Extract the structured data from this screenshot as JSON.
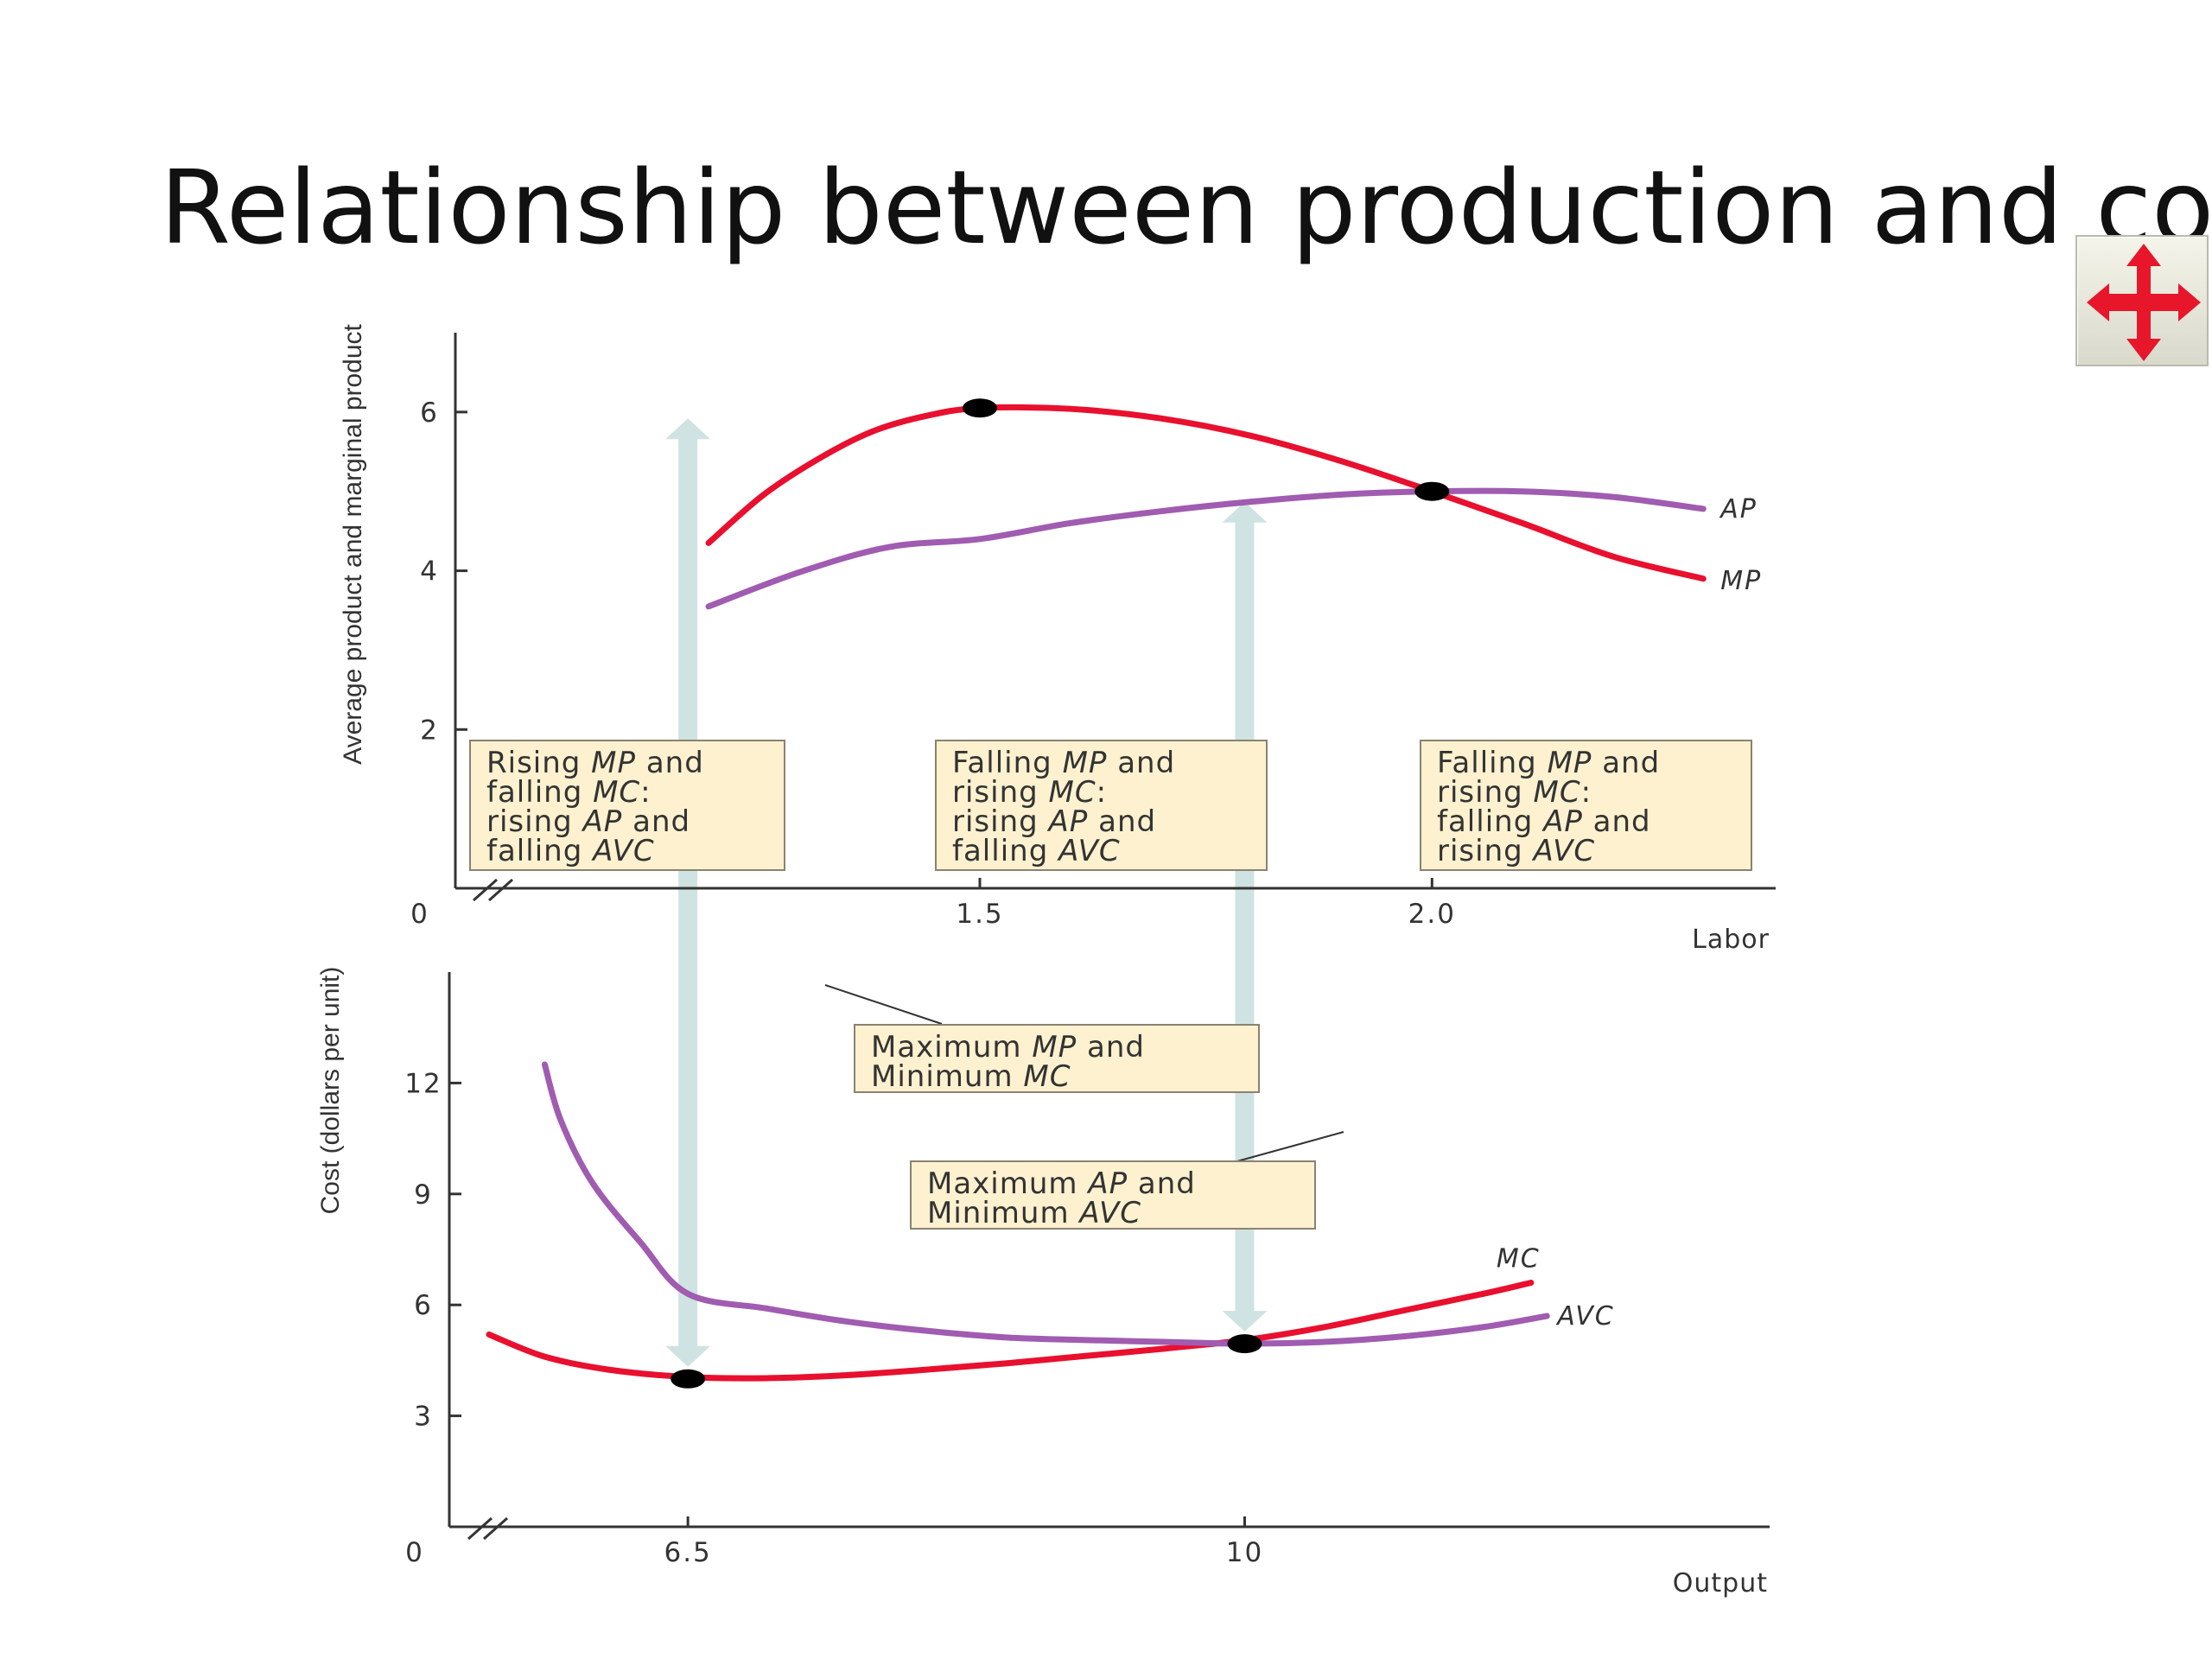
{
  "slide": {
    "title": "Relationship between production and cost"
  },
  "toolbar": {
    "move_icon": "four-way-arrow-icon",
    "move_icon_color": "#e8162b"
  },
  "annotations": {
    "rising_mp": [
      "Rising |MP| and",
      "falling |MC|:",
      "rising |AP| and",
      "falling |AVC|"
    ],
    "falling_mp_rising_ap": [
      "Falling |MP| and",
      "rising |MC|:",
      "rising |AP| and",
      "falling |AVC|"
    ],
    "falling_mp_falling_ap": [
      "Falling |MP| and",
      "rising |MC|:",
      "falling |AP| and",
      "rising |AVC|"
    ],
    "max_mp": [
      "Maximum |MP| and",
      "Minimum |MC|"
    ],
    "max_ap": [
      "Maximum |AP| and",
      "Minimum |AVC|"
    ]
  },
  "chart_data": [
    {
      "type": "line",
      "ylabel": "Average product and marginal product",
      "xlabel": "Labor",
      "xlim": [
        0.92,
        2.38
      ],
      "ylim": [
        0,
        7
      ],
      "x_ticks": [
        {
          "value": 1.5,
          "label": "1.5"
        },
        {
          "value": 2.0,
          "label": "2.0"
        }
      ],
      "y_ticks": [
        {
          "value": 2,
          "label": "2"
        },
        {
          "value": 4,
          "label": "4"
        },
        {
          "value": 6,
          "label": "6"
        }
      ],
      "origin_label": "0",
      "axis_break": true,
      "series": [
        {
          "name": "MP",
          "color": "#e8102e",
          "points": [
            [
              1.2,
              4.35
            ],
            [
              1.26,
              4.95
            ],
            [
              1.32,
              5.4
            ],
            [
              1.38,
              5.75
            ],
            [
              1.44,
              5.95
            ],
            [
              1.5,
              6.05
            ],
            [
              1.6,
              6.04
            ],
            [
              1.7,
              5.92
            ],
            [
              1.8,
              5.7
            ],
            [
              1.9,
              5.38
            ],
            [
              2.0,
              5.0
            ],
            [
              2.1,
              4.6
            ],
            [
              2.2,
              4.18
            ],
            [
              2.3,
              3.9
            ]
          ]
        },
        {
          "name": "AP",
          "color": "#a05cb0",
          "points": [
            [
              1.2,
              3.55
            ],
            [
              1.3,
              3.98
            ],
            [
              1.4,
              4.3
            ],
            [
              1.5,
              4.4
            ],
            [
              1.6,
              4.6
            ],
            [
              1.7,
              4.75
            ],
            [
              1.8,
              4.87
            ],
            [
              1.9,
              4.96
            ],
            [
              2.0,
              5.0
            ],
            [
              2.1,
              5.0
            ],
            [
              2.2,
              4.93
            ],
            [
              2.3,
              4.78
            ]
          ]
        }
      ],
      "highlight_points": [
        [
          1.5,
          6.05
        ],
        [
          2.0,
          5.0
        ]
      ]
    },
    {
      "type": "line",
      "ylabel": "Cost (dollars per unit)",
      "xlabel": "Output",
      "xlim": [
        5.0,
        13.3
      ],
      "ylim": [
        0,
        15
      ],
      "x_ticks": [
        {
          "value": 6.5,
          "label": "6.5"
        },
        {
          "value": 10,
          "label": "10"
        }
      ],
      "y_ticks": [
        {
          "value": 3,
          "label": "3"
        },
        {
          "value": 6,
          "label": "6"
        },
        {
          "value": 9,
          "label": "9"
        },
        {
          "value": 12,
          "label": "12"
        }
      ],
      "origin_label": "0",
      "axis_break": true,
      "series": [
        {
          "name": "MC",
          "color": "#e8102e",
          "points": [
            [
              5.25,
              5.2
            ],
            [
              5.6,
              4.6
            ],
            [
              6.0,
              4.25
            ],
            [
              6.5,
              4.05
            ],
            [
              7.0,
              4.02
            ],
            [
              7.5,
              4.1
            ],
            [
              8.0,
              4.25
            ],
            [
              8.5,
              4.42
            ],
            [
              9.0,
              4.62
            ],
            [
              9.5,
              4.82
            ],
            [
              10.0,
              5.05
            ],
            [
              10.5,
              5.4
            ],
            [
              11.0,
              5.85
            ],
            [
              11.5,
              6.3
            ],
            [
              11.8,
              6.6
            ]
          ]
        },
        {
          "name": "AVC",
          "color": "#a05cb0",
          "points": [
            [
              5.6,
              12.5
            ],
            [
              5.7,
              11.0
            ],
            [
              5.9,
              9.3
            ],
            [
              6.2,
              7.7
            ],
            [
              6.5,
              6.3
            ],
            [
              7.0,
              5.9
            ],
            [
              7.5,
              5.55
            ],
            [
              8.0,
              5.3
            ],
            [
              8.5,
              5.12
            ],
            [
              9.0,
              5.05
            ],
            [
              9.5,
              5.0
            ],
            [
              10.0,
              4.95
            ],
            [
              10.5,
              5.0
            ],
            [
              11.0,
              5.15
            ],
            [
              11.5,
              5.4
            ],
            [
              11.9,
              5.7
            ]
          ]
        }
      ],
      "highlight_points": [
        [
          6.5,
          4.0
        ],
        [
          10.0,
          4.95
        ]
      ]
    }
  ]
}
